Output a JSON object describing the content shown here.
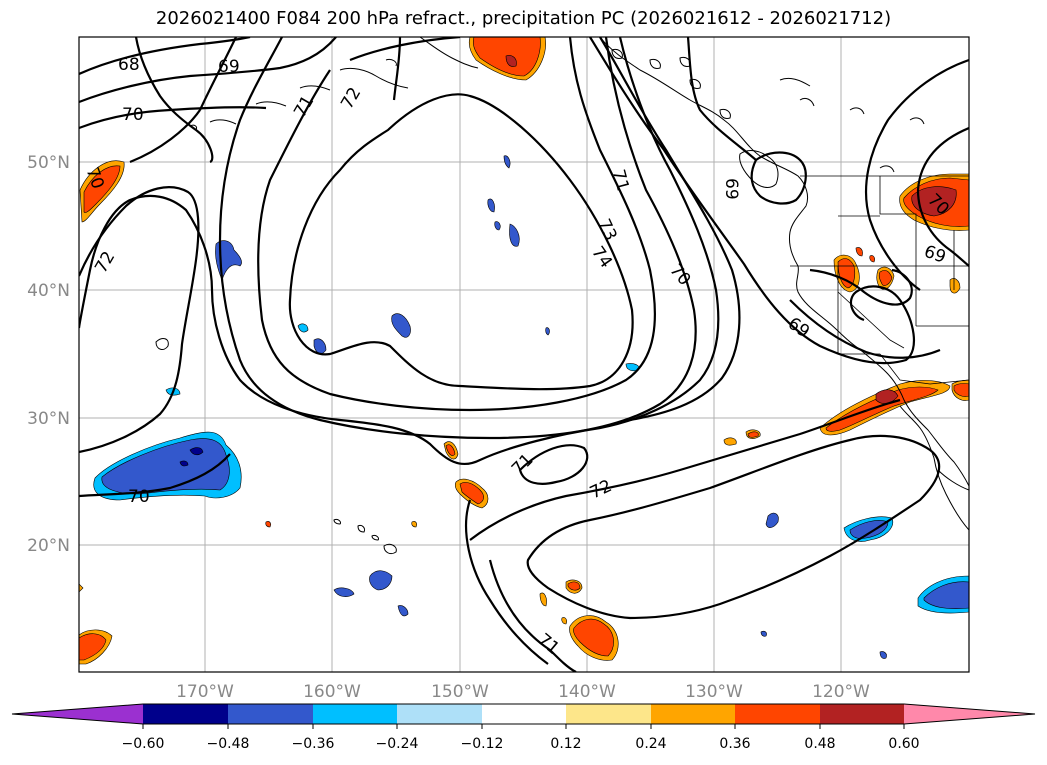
{
  "title": "2026021400 F084 200 hPa refract., precipitation PC (2026021612 - 2026021712)",
  "lat_labels": [
    "50°N",
    "40°N",
    "30°N",
    "20°N"
  ],
  "lon_labels": [
    "170°W",
    "160°W",
    "150°W",
    "140°W",
    "130°W",
    "120°W"
  ],
  "contour_labels": [
    "68",
    "69",
    "70",
    "71",
    "72",
    "73",
    "74",
    "71",
    "70",
    "69",
    "69",
    "72",
    "70",
    "71",
    "72",
    "71",
    "70",
    "69",
    "70"
  ],
  "colorbar": {
    "ticks": [
      "−0.60",
      "−0.48",
      "−0.36",
      "−0.24",
      "−0.12",
      "0.12",
      "0.24",
      "0.36",
      "0.48",
      "0.60"
    ],
    "colors": [
      "#9b30d0",
      "#00008b",
      "#3358cc",
      "#00bfff",
      "#aee0f8",
      "#ffffff",
      "#fde68a",
      "#ffa500",
      "#ff4500",
      "#b22222",
      "#ff88aa"
    ]
  },
  "colors": {
    "neg_dark": "#00008b",
    "neg_mid": "#3358cc",
    "neg_light": "#00bfff",
    "neg_pale": "#aee0f8",
    "pos_pale": "#fde68a",
    "pos_light": "#ffa500",
    "pos_mid": "#ff4500",
    "pos_dark": "#b22222"
  }
}
